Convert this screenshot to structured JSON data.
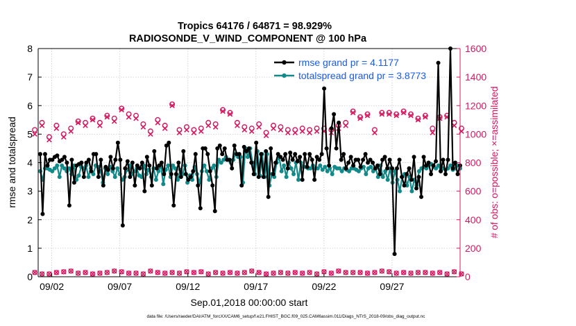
{
  "chart_data": {
    "type": "line",
    "title_line1": "Tropics 64176 / 64871 = 98.929%",
    "title_line2": "RADIOSONDE_V_WIND_COMPONENT @ 100 hPa",
    "ylabel_left": "rmse and totalspread",
    "ylabel_right": "# of obs: o=possible; ×=assimilated",
    "xlabel": "Sep.01,2018 00:00:00 start",
    "footnote": "data file: /Users/raeder/DAI/ATM_forcXX/CAM6_setup/f.e21.FHIST_BGC.f09_025.CAM6assim.011/Diags_NTrS_2018-09/obs_diag_output.nc",
    "xlim": [
      1,
      32
    ],
    "ylim_left": [
      0,
      8
    ],
    "ylim_right": [
      0,
      1600
    ],
    "xticks": [
      2,
      7,
      12,
      17,
      22,
      27
    ],
    "xtick_labels": [
      "09/02",
      "09/07",
      "09/12",
      "09/17",
      "09/22",
      "09/27"
    ],
    "yticks_left": [
      "0",
      "1",
      "2",
      "3",
      "4",
      "5",
      "6",
      "7",
      "8"
    ],
    "yticks_right": [
      "0",
      "200",
      "400",
      "600",
      "800",
      "1000",
      "1200",
      "1400",
      "1600"
    ],
    "colors": {
      "rmse": "#000000",
      "spread": "#138a8a",
      "obs": "#d5175f",
      "legend_text": "#1a5ce6"
    },
    "legend": [
      {
        "label": "rmse grand pr = 4.1177",
        "series": "rmse"
      },
      {
        "label": "totalspread grand pr = 3.8773",
        "series": "spread"
      }
    ],
    "series": [
      {
        "name": "rmse",
        "axis": "left",
        "values": [
          4.3,
          2.2,
          4.3,
          3.9,
          4.1,
          4.1,
          4.2,
          4.25,
          4.05,
          4.1,
          4.2,
          4.0,
          2.5,
          4.1,
          3.3,
          3.9,
          3.95,
          4.0,
          3.5,
          4.0,
          4.1,
          3.7,
          4.3,
          4.3,
          3.5,
          4.1,
          3.2,
          3.85,
          3.75,
          4.2,
          3.8,
          4.1,
          4.7,
          4.1,
          1.8,
          3.8,
          4.05,
          3.5,
          4.0,
          3.2,
          3.9,
          3.8,
          4.0,
          3.0,
          4.2,
          3.9,
          3.2,
          4.4,
          3.8,
          3.9,
          4.0,
          3.6,
          4.6,
          4.7,
          3.6,
          2.5,
          3.6,
          4.0,
          3.5,
          4.4,
          3.6,
          3.4,
          3.5,
          3.7,
          4.3,
          3.2,
          2.4,
          4.5,
          4.5,
          4.3,
          3.7,
          3.2,
          2.3,
          4.5,
          4.6,
          4.3,
          4.5,
          4.1,
          4.1,
          3.8,
          4.6,
          4.3,
          4.3,
          3.2,
          4.55,
          4.4,
          4.5,
          4.0,
          3.6,
          4.7,
          3.5,
          4.3,
          3.5,
          4.4,
          2.8,
          4.5,
          3.6,
          4.0,
          4.3,
          4.2,
          4.1,
          4.3,
          3.8,
          4.35,
          4.1,
          4.3,
          4.05,
          4.2,
          3.4,
          4.3,
          3.85,
          4.3,
          4.1,
          3.4,
          4.2,
          4.1,
          4.3,
          6.6,
          4.5,
          3.9,
          5.2,
          5.7,
          4.5,
          5.4,
          4.1,
          4.3,
          3.8,
          4.0,
          4.2,
          3.9,
          4.1,
          4.1,
          3.85,
          4.1,
          4.3,
          4.0,
          4.1,
          4.0,
          3.8,
          3.9,
          3.6,
          4.1,
          4.2,
          3.8,
          4.1,
          3.8,
          0.8,
          3.8,
          4.1,
          3.5,
          3.2,
          3.6,
          3.8,
          3.4,
          4.2,
          3.1,
          3.5,
          2.8,
          4.2,
          3.9,
          4.0,
          3.6,
          3.9,
          4.05,
          7.5,
          3.7,
          4.1,
          3.6,
          4.1,
          8.0,
          3.8,
          4.0,
          3.6,
          3.9
        ]
      },
      {
        "name": "totalspread",
        "axis": "left",
        "values": [
          3.7,
          3.4,
          3.8,
          3.8,
          3.75,
          3.7,
          3.8,
          3.9,
          3.5,
          3.9,
          3.8,
          3.7,
          3.8,
          3.6,
          3.9,
          3.4,
          3.55,
          3.85,
          3.8,
          3.9,
          3.5,
          3.8,
          3.6,
          3.9,
          3.85,
          3.7,
          3.3,
          3.8,
          3.6,
          3.85,
          3.7,
          3.5,
          3.8,
          3.6,
          3.4,
          3.5,
          3.75,
          3.9,
          3.6,
          3.7,
          3.8,
          3.55,
          3.5,
          3.9,
          3.6,
          3.75,
          3.5,
          3.8,
          3.4,
          3.7,
          3.9,
          3.25,
          3.75,
          3.9,
          3.5,
          3.9,
          3.8,
          3.4,
          3.75,
          3.6,
          3.9,
          3.3,
          3.55,
          3.4,
          3.85,
          3.6,
          3.3,
          3.7,
          3.9,
          3.7,
          3.4,
          3.8,
          3.9,
          3.5,
          4.1,
          4.0,
          4.1,
          4.2,
          4.1,
          4.0,
          4.1,
          4.3,
          4.2,
          4.2,
          3.3,
          4.5,
          4.2,
          4.5,
          4.0,
          3.6,
          4.4,
          3.55,
          4.3,
          3.5,
          4.3,
          3.2,
          3.6,
          3.5,
          4.0,
          4.2,
          3.7,
          3.9,
          3.5,
          4.0,
          3.8,
          3.6,
          4.0,
          3.4,
          4.0,
          3.85,
          3.85,
          3.8,
          3.8,
          3.9,
          3.8,
          3.8,
          3.9,
          3.75,
          3.85,
          3.7,
          3.8,
          3.6,
          3.85,
          3.8,
          3.8,
          3.7,
          3.8,
          3.75,
          3.7,
          3.8,
          3.8,
          3.75,
          3.7,
          3.8,
          3.85,
          3.6,
          3.8,
          3.85,
          3.7,
          3.8,
          3.5,
          3.9,
          3.5,
          3.7,
          3.4,
          3.8,
          3.3,
          3.7,
          3.4,
          3.0,
          3.5,
          3.6,
          3.2,
          3.5,
          3.0,
          3.4,
          3.2,
          3.7,
          3.8,
          3.85,
          3.8,
          3.9,
          3.95,
          3.85,
          3.8,
          3.9,
          3.7,
          3.8,
          3.75,
          3.8,
          3.9,
          3.75,
          3.8,
          3.9,
          3.8
        ]
      }
    ],
    "obs_possible": [
      1030,
      1080,
      980,
      1060,
      1000,
      1040,
      1090,
      1080,
      1110,
      1080,
      1130,
      1110,
      1180,
      1140,
      1130,
      1070,
      1020,
      1100,
      1060,
      1210,
      1030,
      1050,
      1030,
      1040,
      1080,
      1070,
      1170,
      1150,
      1080,
      1050,
      1040,
      1070,
      1010,
      1060,
      1050,
      1030,
      1030,
      1040,
      1030,
      1040,
      1040,
      1030,
      1060,
      1080,
      1160,
      1120,
      1140,
      1030,
      1150,
      1150,
      1140,
      1160,
      1140,
      1110,
      1130,
      1040,
      1120,
      1130,
      1080,
      1040
    ],
    "obs_assimilated": [
      1000,
      1060,
      960,
      1040,
      980,
      1020,
      1080,
      1060,
      1100,
      1060,
      1120,
      1090,
      1170,
      1120,
      1110,
      1050,
      1000,
      1080,
      1040,
      1200,
      1010,
      1030,
      1010,
      1020,
      1060,
      1050,
      1160,
      1140,
      1060,
      1030,
      1020,
      1050,
      990,
      1040,
      1030,
      1010,
      1010,
      1020,
      1010,
      1020,
      1020,
      1010,
      1040,
      1060,
      1150,
      1110,
      1130,
      1010,
      1140,
      1140,
      1130,
      1150,
      1130,
      1100,
      1120,
      1010,
      1110,
      1120,
      1060,
      1020
    ],
    "obs_low": [
      30,
      20,
      20,
      30,
      35,
      40,
      25,
      30,
      20,
      25,
      30,
      40,
      35,
      25,
      25,
      20,
      40,
      30,
      25,
      30,
      25,
      35,
      30,
      35,
      20,
      30,
      25,
      30,
      25,
      30,
      40,
      30,
      20,
      25,
      30,
      25,
      30,
      25,
      30,
      20,
      35,
      25,
      40,
      30,
      30,
      30,
      25,
      30,
      40,
      35,
      25,
      30,
      25,
      30,
      30,
      25,
      30,
      20,
      35,
      20
    ]
  }
}
